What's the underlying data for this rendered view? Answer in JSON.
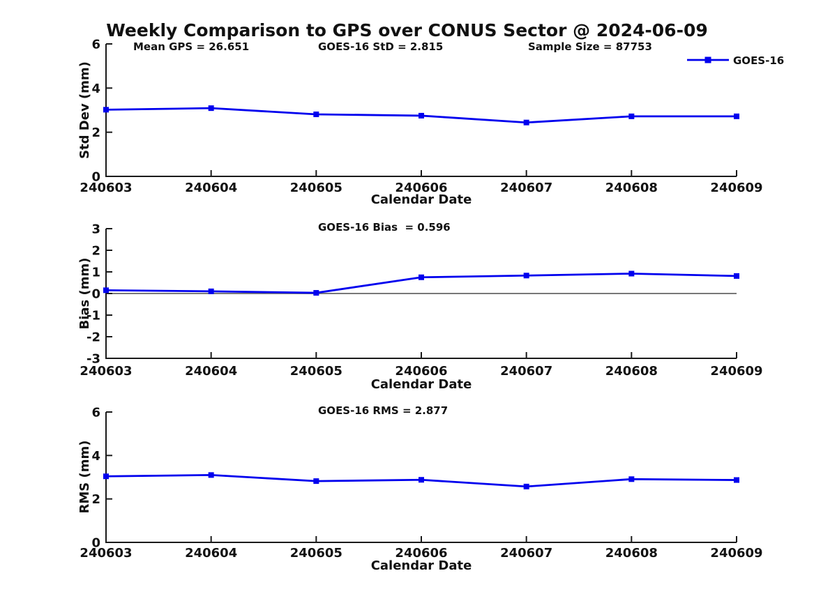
{
  "title": "Weekly Comparison to GPS over CONUS Sector @ 2024-06-09",
  "colors": {
    "series": "#0000EE",
    "zero_line": "#787878",
    "axis": "#1a1a1a",
    "text": "#111111"
  },
  "legend": {
    "label": "GOES-16",
    "marker": "square",
    "position": "top-right"
  },
  "chart_data": [
    {
      "id": "std_dev",
      "type": "line",
      "x": [
        "240603",
        "240604",
        "240605",
        "240606",
        "240607",
        "240608",
        "240609"
      ],
      "series": [
        {
          "name": "GOES-16",
          "values": [
            3.02,
            3.09,
            2.81,
            2.75,
            2.44,
            2.72,
            2.72
          ]
        }
      ],
      "annotations": [
        "Mean GPS = 26.651",
        "GOES-16 StD = 2.815",
        "Sample Size = 87753"
      ],
      "xlabel": "Calendar Date",
      "ylabel": "Std Dev (mm)",
      "ylim": [
        0,
        6
      ],
      "yticks": [
        0,
        2,
        4,
        6
      ],
      "grid": false,
      "zero_line": false,
      "show_legend": true
    },
    {
      "id": "bias",
      "type": "line",
      "x": [
        "240603",
        "240604",
        "240605",
        "240606",
        "240607",
        "240608",
        "240609"
      ],
      "series": [
        {
          "name": "GOES-16",
          "values": [
            0.15,
            0.1,
            0.03,
            0.75,
            0.83,
            0.92,
            0.81
          ]
        }
      ],
      "annotations": [
        "GOES-16 Bias  = 0.596"
      ],
      "xlabel": "Calendar Date",
      "ylabel": "Bias (mm)",
      "ylim": [
        -3,
        3
      ],
      "yticks": [
        3,
        2,
        1,
        0,
        -1,
        -2,
        -3
      ],
      "grid": false,
      "zero_line": true,
      "show_legend": false
    },
    {
      "id": "rms",
      "type": "line",
      "x": [
        "240603",
        "240604",
        "240605",
        "240606",
        "240607",
        "240608",
        "240609"
      ],
      "series": [
        {
          "name": "GOES-16",
          "values": [
            3.04,
            3.1,
            2.82,
            2.88,
            2.57,
            2.91,
            2.87
          ]
        }
      ],
      "annotations": [
        "GOES-16 RMS = 2.877"
      ],
      "xlabel": "Calendar Date",
      "ylabel": "RMS (mm)",
      "ylim": [
        0,
        6
      ],
      "yticks": [
        0,
        2,
        4,
        6
      ],
      "grid": false,
      "zero_line": false,
      "show_legend": false
    }
  ]
}
